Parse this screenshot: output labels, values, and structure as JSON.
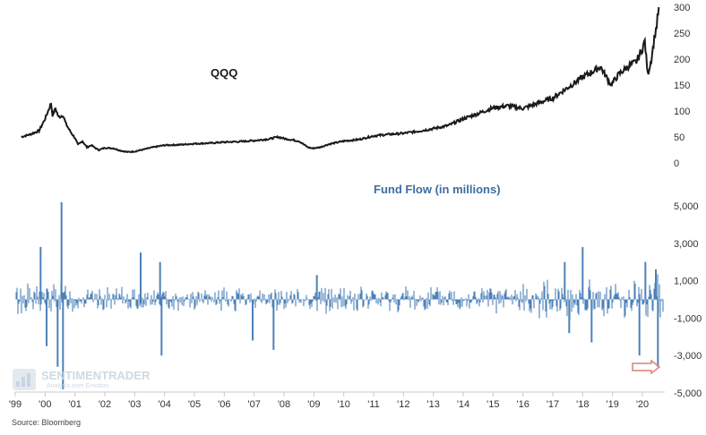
{
  "chart_data": [
    {
      "type": "line",
      "title": "QQQ",
      "color": "#1a1a1a",
      "y_ticks": [
        0,
        50,
        100,
        150,
        200,
        250,
        300
      ],
      "ylim": [
        0,
        300
      ],
      "x": [
        1999.2,
        1999.5,
        1999.8,
        2000.0,
        2000.1,
        2000.2,
        2000.25,
        2000.35,
        2000.45,
        2000.6,
        2000.7,
        2000.85,
        2001.0,
        2001.1,
        2001.25,
        2001.4,
        2001.55,
        2001.7,
        2001.8,
        2002.0,
        2002.3,
        2002.5,
        2002.75,
        2003.0,
        2003.3,
        2003.6,
        2004.0,
        2004.5,
        2005.0,
        2005.5,
        2006.0,
        2006.5,
        2007.0,
        2007.5,
        2007.8,
        2008.0,
        2008.5,
        2008.8,
        2008.95,
        2009.2,
        2009.5,
        2010.0,
        2010.5,
        2011.0,
        2011.5,
        2012.0,
        2012.5,
        2013.0,
        2013.5,
        2014.0,
        2014.5,
        2015.0,
        2015.5,
        2016.0,
        2016.5,
        2017.0,
        2017.5,
        2018.0,
        2018.6,
        2018.95,
        2019.2,
        2019.5,
        2019.8,
        2020.0,
        2020.08,
        2020.18,
        2020.3,
        2020.4,
        2020.48,
        2020.55
      ],
      "y": [
        50,
        55,
        62,
        85,
        100,
        115,
        92,
        105,
        88,
        92,
        75,
        60,
        48,
        35,
        42,
        30,
        34,
        28,
        25,
        29,
        28,
        24,
        21,
        22,
        26,
        30,
        34,
        35,
        37,
        38,
        40,
        41,
        43,
        46,
        50,
        47,
        42,
        30,
        28,
        30,
        36,
        42,
        45,
        52,
        55,
        57,
        61,
        66,
        72,
        85,
        95,
        106,
        110,
        105,
        115,
        125,
        145,
        165,
        185,
        150,
        170,
        185,
        195,
        220,
        235,
        170,
        200,
        240,
        265,
        300
      ]
    },
    {
      "type": "bar",
      "title": "Fund Flow (in millions)",
      "color": "#4d80b8",
      "ylim": [
        -5000,
        5000
      ],
      "y_ticks": [
        -5000,
        -3000,
        -1000,
        1000,
        3000,
        5000
      ],
      "y_tick_labels": [
        "-5,000",
        "-3,000",
        "-1,000",
        "1,000",
        "3,000",
        "5,000"
      ],
      "notable_spikes": [
        {
          "x": 1999.85,
          "value": 2800
        },
        {
          "x": 2000.05,
          "value": -2500
        },
        {
          "x": 2000.42,
          "value": -3600
        },
        {
          "x": 2000.55,
          "value": 5200
        },
        {
          "x": 2000.6,
          "value": -4800
        },
        {
          "x": 2003.2,
          "value": 2500
        },
        {
          "x": 2003.85,
          "value": 2000
        },
        {
          "x": 2003.9,
          "value": -3000
        },
        {
          "x": 2006.95,
          "value": -2200
        },
        {
          "x": 2007.65,
          "value": -2700
        },
        {
          "x": 2009.1,
          "value": 1300
        },
        {
          "x": 2017.4,
          "value": 2000
        },
        {
          "x": 2017.55,
          "value": -1800
        },
        {
          "x": 2018.0,
          "value": 2800
        },
        {
          "x": 2018.3,
          "value": -2300
        },
        {
          "x": 2019.9,
          "value": -3000
        },
        {
          "x": 2020.1,
          "value": 2000
        },
        {
          "x": 2020.45,
          "value": 1600
        },
        {
          "x": 2020.52,
          "value": -3600
        }
      ]
    }
  ],
  "x_axis": {
    "min": 1999.0,
    "max": 2020.75,
    "tick_labels": [
      "'99",
      "'00",
      "'01",
      "'02",
      "'03",
      "'04",
      "'05",
      "'06",
      "'07",
      "'08",
      "'09",
      "'10",
      "'11",
      "'12",
      "'13",
      "'14",
      "'15",
      "'16",
      "'17",
      "'18",
      "'19",
      "'20"
    ]
  },
  "source": "Source: Bloomberg",
  "watermark": {
    "name": "SENTIMENTRADER",
    "tagline": "Analysis over Emotion"
  },
  "annotation": {
    "type": "arrow",
    "color": "#d9827a",
    "points_to_x": 2020.52
  }
}
